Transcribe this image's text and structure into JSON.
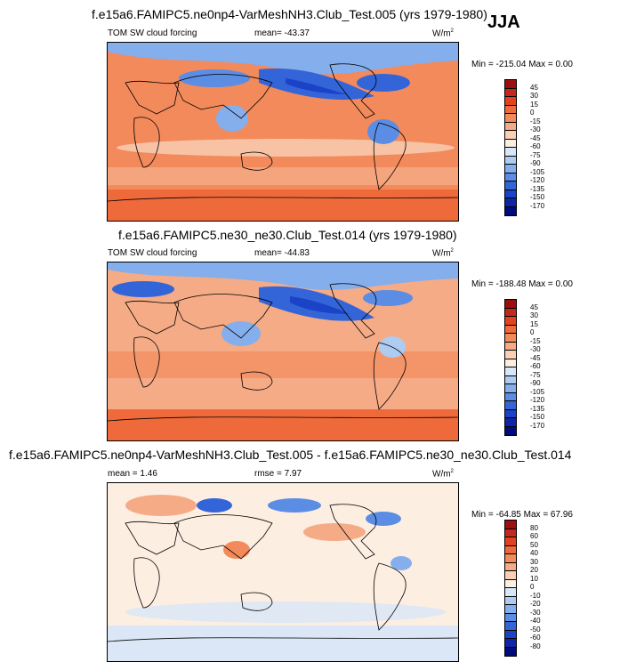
{
  "season": "JJA",
  "chart_data": [
    {
      "type": "heatmap",
      "title": "f.e15a6.FAMIPC5.ne0np4-VarMeshNH3.Club_Test.005 (yrs 1979-1980)",
      "variable": "TOM SW cloud forcing",
      "mean_label": "mean=",
      "mean": "-43.37",
      "units": "W/m",
      "units_sup": "2",
      "minmax_label": "Min = -215.04 Max =   0.00",
      "min": -215.04,
      "max": 0.0,
      "levels": [
        "45",
        "30",
        "15",
        "0",
        "-15",
        "-30",
        "-45",
        "-60",
        "-75",
        "-90",
        "-105",
        "-120",
        "-135",
        "-150",
        "-170"
      ],
      "colors": [
        "#9c0f0f",
        "#c4271e",
        "#e2421f",
        "#ef6a3b",
        "#f28a5c",
        "#f5ab86",
        "#f9cfb6",
        "#fdeee2",
        "#d7e6f8",
        "#aecbf2",
        "#85aeec",
        "#5c8de4",
        "#3465d8",
        "#1a43c7",
        "#0d25a8",
        "#000c7d"
      ]
    },
    {
      "type": "heatmap",
      "title": "f.e15a6.FAMIPC5.ne30_ne30.Club_Test.014 (yrs 1979-1980)",
      "variable": "TOM SW cloud forcing",
      "mean_label": "mean=",
      "mean": "-44.83",
      "units": "W/m",
      "units_sup": "2",
      "minmax_label": "Min = -188.48 Max =   0.00",
      "min": -188.48,
      "max": 0.0,
      "levels": [
        "45",
        "30",
        "15",
        "0",
        "-15",
        "-30",
        "-45",
        "-60",
        "-75",
        "-90",
        "-105",
        "-120",
        "-135",
        "-150",
        "-170"
      ],
      "colors": [
        "#9c0f0f",
        "#c4271e",
        "#e2421f",
        "#ef6a3b",
        "#f28a5c",
        "#f5ab86",
        "#f9cfb6",
        "#fdeee2",
        "#d7e6f8",
        "#aecbf2",
        "#85aeec",
        "#5c8de4",
        "#3465d8",
        "#1a43c7",
        "#0d25a8",
        "#000c7d"
      ]
    },
    {
      "type": "heatmap",
      "title": "f.e15a6.FAMIPC5.ne0np4-VarMeshNH3.Club_Test.005 - f.e15a6.FAMIPC5.ne30_ne30.Club_Test.014",
      "mean_label": "mean =",
      "mean": "1.46",
      "rmse_label": "rmse =",
      "rmse": "7.97",
      "units": "W/m",
      "units_sup": "2",
      "minmax_label": "Min = -64.85 Max = 67.96",
      "min": -64.85,
      "max": 67.96,
      "levels": [
        "80",
        "60",
        "50",
        "40",
        "30",
        "20",
        "10",
        "0",
        "-10",
        "-20",
        "-30",
        "-40",
        "-50",
        "-60",
        "-80"
      ],
      "colors": [
        "#9c0f0f",
        "#c4271e",
        "#e2421f",
        "#ef6a3b",
        "#f28a5c",
        "#f5ab86",
        "#f9cfb6",
        "#fdeee2",
        "#d7e6f8",
        "#aecbf2",
        "#85aeec",
        "#5c8de4",
        "#3465d8",
        "#1a43c7",
        "#0d25a8",
        "#000c7d"
      ]
    }
  ]
}
